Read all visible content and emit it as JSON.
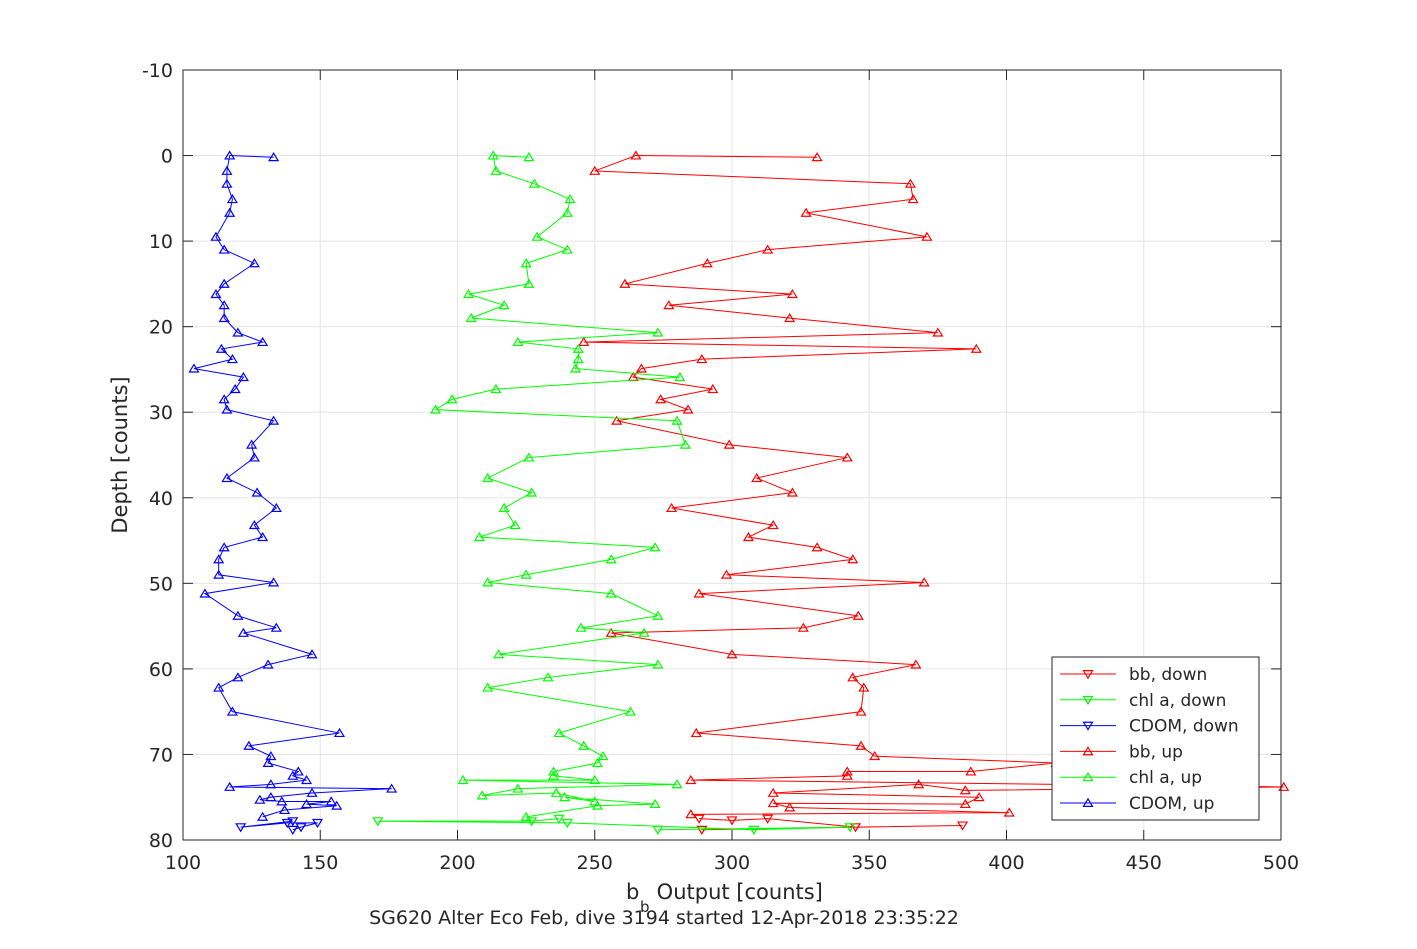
{
  "chart_data": {
    "type": "line",
    "title": "",
    "xlabel_main": "b",
    "xlabel_sub": "b",
    "xlabel_rest": " Output [counts]",
    "ylabel": "Depth [counts]",
    "footer": "SG620 Alter Eco Feb, dive 3194 started 12-Apr-2018 23:35:22",
    "xlim": [
      100,
      500
    ],
    "ylim": [
      -10,
      80
    ],
    "y_reversed": true,
    "grid": true,
    "legend_position": "bottom-right",
    "x_ticks": [
      "100",
      "150",
      "200",
      "250",
      "300",
      "350",
      "400",
      "450",
      "500"
    ],
    "y_ticks": [
      "-10",
      "0",
      "10",
      "20",
      "30",
      "40",
      "50",
      "60",
      "70",
      "80"
    ],
    "series": [
      {
        "name": "bb, down",
        "color": "#ff0000",
        "marker": "triangle-down",
        "points": [
          [
            288,
            77.5
          ],
          [
            300,
            77.7
          ],
          [
            313,
            77.5
          ],
          [
            345,
            78.5
          ],
          [
            384,
            78.3
          ],
          [
            289,
            78.8
          ]
        ]
      },
      {
        "name": "chl a, down",
        "color": "#00ff00",
        "marker": "triangle-down",
        "points": [
          [
            237,
            77.5
          ],
          [
            227,
            77.8
          ],
          [
            171,
            77.8
          ],
          [
            240,
            78.0
          ],
          [
            308,
            78.8
          ],
          [
            343,
            78.5
          ],
          [
            273,
            78.8
          ]
        ]
      },
      {
        "name": "CDOM, down",
        "color": "#0000ff",
        "marker": "triangle-down",
        "points": [
          [
            140,
            77.8
          ],
          [
            121,
            78.5
          ],
          [
            138,
            78.0
          ],
          [
            149,
            78.0
          ],
          [
            143,
            78.5
          ],
          [
            140,
            78.8
          ]
        ]
      },
      {
        "name": "bb, up",
        "color": "#ff0000",
        "marker": "triangle-up",
        "points": [
          [
            331,
            0.2
          ],
          [
            265,
            0
          ],
          [
            250,
            1.8
          ],
          [
            365,
            3.3
          ],
          [
            366,
            5.1
          ],
          [
            327,
            6.7
          ],
          [
            371,
            9.5
          ],
          [
            313,
            11.0
          ],
          [
            291,
            12.6
          ],
          [
            261,
            15.0
          ],
          [
            322,
            16.2
          ],
          [
            277,
            17.5
          ],
          [
            321,
            19.0
          ],
          [
            375,
            20.7
          ],
          [
            246,
            21.8
          ],
          [
            389,
            22.6
          ],
          [
            289,
            23.8
          ],
          [
            267,
            24.9
          ],
          [
            264,
            25.9
          ],
          [
            293,
            27.3
          ],
          [
            274,
            28.5
          ],
          [
            284,
            29.7
          ],
          [
            258,
            31.0
          ],
          [
            299,
            33.8
          ],
          [
            342,
            35.3
          ],
          [
            309,
            37.7
          ],
          [
            322,
            39.4
          ],
          [
            278,
            41.2
          ],
          [
            315,
            43.2
          ],
          [
            306,
            44.6
          ],
          [
            331,
            45.8
          ],
          [
            344,
            47.2
          ],
          [
            298,
            49.0
          ],
          [
            370,
            49.9
          ],
          [
            288,
            51.2
          ],
          [
            346,
            53.8
          ],
          [
            326,
            55.2
          ],
          [
            256,
            55.8
          ],
          [
            300,
            58.3
          ],
          [
            367,
            59.5
          ],
          [
            344,
            61.0
          ],
          [
            348,
            62.2
          ],
          [
            347,
            65.0
          ],
          [
            287,
            67.5
          ],
          [
            347,
            69.0
          ],
          [
            352,
            70.2
          ],
          [
            418,
            71.0
          ],
          [
            387,
            72.0
          ],
          [
            342,
            72.0
          ],
          [
            342,
            72.5
          ],
          [
            285,
            73.0
          ],
          [
            501,
            73.8
          ],
          [
            385,
            74.2
          ],
          [
            368,
            73.5
          ],
          [
            315,
            74.5
          ],
          [
            390,
            75.0
          ],
          [
            385,
            75.8
          ],
          [
            315,
            75.7
          ],
          [
            321,
            76.2
          ],
          [
            401,
            76.8
          ],
          [
            285,
            77.0
          ]
        ]
      },
      {
        "name": "chl a, up",
        "color": "#00ff00",
        "marker": "triangle-up",
        "points": [
          [
            226,
            0.2
          ],
          [
            213,
            0
          ],
          [
            214,
            1.8
          ],
          [
            228,
            3.3
          ],
          [
            241,
            5.1
          ],
          [
            240,
            6.7
          ],
          [
            229,
            9.5
          ],
          [
            240,
            11.0
          ],
          [
            225,
            12.6
          ],
          [
            226,
            15.0
          ],
          [
            204,
            16.2
          ],
          [
            217,
            17.5
          ],
          [
            205,
            19.0
          ],
          [
            273,
            20.7
          ],
          [
            222,
            21.8
          ],
          [
            244,
            22.6
          ],
          [
            244,
            23.8
          ],
          [
            243,
            24.9
          ],
          [
            281,
            25.9
          ],
          [
            214,
            27.3
          ],
          [
            198,
            28.5
          ],
          [
            192,
            29.7
          ],
          [
            280,
            31.0
          ],
          [
            283,
            33.8
          ],
          [
            226,
            35.3
          ],
          [
            211,
            37.7
          ],
          [
            227,
            39.4
          ],
          [
            217,
            41.2
          ],
          [
            221,
            43.2
          ],
          [
            208,
            44.6
          ],
          [
            272,
            45.8
          ],
          [
            256,
            47.2
          ],
          [
            225,
            49.0
          ],
          [
            211,
            49.9
          ],
          [
            256,
            51.2
          ],
          [
            273,
            53.8
          ],
          [
            245,
            55.2
          ],
          [
            268,
            55.8
          ],
          [
            215,
            58.3
          ],
          [
            273,
            59.5
          ],
          [
            233,
            61.0
          ],
          [
            211,
            62.2
          ],
          [
            263,
            65.0
          ],
          [
            237,
            67.5
          ],
          [
            246,
            69.0
          ],
          [
            253,
            70.2
          ],
          [
            251,
            71.0
          ],
          [
            235,
            72.0
          ],
          [
            235,
            72.5
          ],
          [
            250,
            73.0
          ],
          [
            202,
            73.0
          ],
          [
            280,
            73.5
          ],
          [
            222,
            74.0
          ],
          [
            209,
            74.8
          ],
          [
            236,
            74.5
          ],
          [
            250,
            75.5
          ],
          [
            239,
            75.0
          ],
          [
            272,
            75.8
          ],
          [
            251,
            76.0
          ],
          [
            225,
            77.3
          ]
        ]
      },
      {
        "name": "CDOM, up",
        "color": "#0000ff",
        "marker": "triangle-up",
        "points": [
          [
            133,
            0.2
          ],
          [
            117,
            0
          ],
          [
            116,
            1.8
          ],
          [
            116,
            3.3
          ],
          [
            118,
            5.1
          ],
          [
            117,
            6.7
          ],
          [
            112,
            9.5
          ],
          [
            115,
            11.0
          ],
          [
            126,
            12.6
          ],
          [
            115,
            15.0
          ],
          [
            112,
            16.2
          ],
          [
            115,
            17.5
          ],
          [
            115,
            19.0
          ],
          [
            120,
            20.7
          ],
          [
            129,
            21.8
          ],
          [
            114,
            22.6
          ],
          [
            118,
            23.8
          ],
          [
            104,
            24.9
          ],
          [
            122,
            25.9
          ],
          [
            119,
            27.3
          ],
          [
            115,
            28.5
          ],
          [
            116,
            29.7
          ],
          [
            133,
            31.0
          ],
          [
            125,
            33.8
          ],
          [
            126,
            35.3
          ],
          [
            116,
            37.7
          ],
          [
            127,
            39.4
          ],
          [
            134,
            41.2
          ],
          [
            126,
            43.2
          ],
          [
            129,
            44.6
          ],
          [
            115,
            45.8
          ],
          [
            113,
            47.2
          ],
          [
            113,
            49.0
          ],
          [
            133,
            49.9
          ],
          [
            108,
            51.2
          ],
          [
            120,
            53.8
          ],
          [
            134,
            55.2
          ],
          [
            122,
            55.8
          ],
          [
            147,
            58.3
          ],
          [
            131,
            59.5
          ],
          [
            120,
            61.0
          ],
          [
            113,
            62.2
          ],
          [
            118,
            65.0
          ],
          [
            157,
            67.5
          ],
          [
            124,
            69.0
          ],
          [
            132,
            70.2
          ],
          [
            131,
            71.0
          ],
          [
            142,
            72.0
          ],
          [
            140,
            72.5
          ],
          [
            145,
            73.0
          ],
          [
            132,
            73.5
          ],
          [
            117,
            73.8
          ],
          [
            176,
            74.0
          ],
          [
            147,
            74.5
          ],
          [
            132,
            75.0
          ],
          [
            128,
            75.3
          ],
          [
            136,
            75.5
          ],
          [
            154,
            75.5
          ],
          [
            145,
            75.8
          ],
          [
            156,
            76.0
          ],
          [
            137,
            76.5
          ],
          [
            129,
            77.3
          ]
        ]
      }
    ]
  }
}
